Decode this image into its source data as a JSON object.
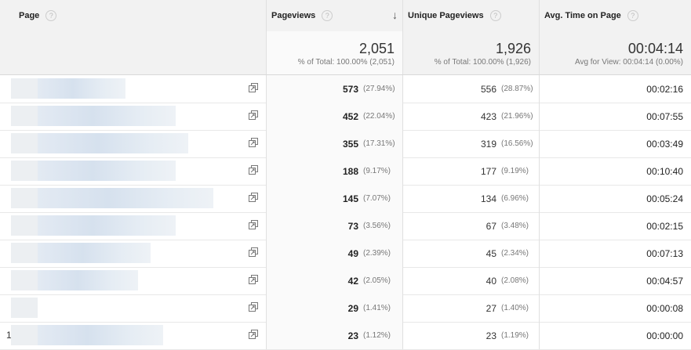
{
  "header": {
    "page_label": "Page",
    "pageviews_label": "Pageviews",
    "unique_label": "Unique Pageviews",
    "avg_time_label": "Avg. Time on Page",
    "help_glyph": "?",
    "sort_glyph": "↓"
  },
  "totals": {
    "pageviews": "2,051",
    "pageviews_sub": "% of Total: 100.00% (2,051)",
    "unique": "1,926",
    "unique_sub": "% of Total: 100.00% (1,926)",
    "avg_time": "00:04:14",
    "avg_time_sub": "Avg for View: 00:04:14 (0.00%)"
  },
  "rows": [
    {
      "index": "",
      "pageviews": "573",
      "pv_pct": "(27.94%)",
      "unique": "556",
      "u_pct": "(28.87%)",
      "avg": "00:02:16"
    },
    {
      "index": "",
      "pageviews": "452",
      "pv_pct": "(22.04%)",
      "unique": "423",
      "u_pct": "(21.96%)",
      "avg": "00:07:55"
    },
    {
      "index": "",
      "pageviews": "355",
      "pv_pct": "(17.31%)",
      "unique": "319",
      "u_pct": "(16.56%)",
      "avg": "00:03:49"
    },
    {
      "index": "",
      "pageviews": "188",
      "pv_pct": "(9.17%)",
      "unique": "177",
      "u_pct": "(9.19%)",
      "avg": "00:10:40"
    },
    {
      "index": "",
      "pageviews": "145",
      "pv_pct": "(7.07%)",
      "unique": "134",
      "u_pct": "(6.96%)",
      "avg": "00:05:24"
    },
    {
      "index": "",
      "pageviews": "73",
      "pv_pct": "(3.56%)",
      "unique": "67",
      "u_pct": "(3.48%)",
      "avg": "00:02:15"
    },
    {
      "index": "",
      "pageviews": "49",
      "pv_pct": "(2.39%)",
      "unique": "45",
      "u_pct": "(2.34%)",
      "avg": "00:07:13"
    },
    {
      "index": "",
      "pageviews": "42",
      "pv_pct": "(2.05%)",
      "unique": "40",
      "u_pct": "(2.08%)",
      "avg": "00:04:57"
    },
    {
      "index": "",
      "pageviews": "29",
      "pv_pct": "(1.41%)",
      "unique": "27",
      "u_pct": "(1.40%)",
      "avg": "00:00:08"
    },
    {
      "index": "1",
      "pageviews": "23",
      "pv_pct": "(1.12%)",
      "unique": "23",
      "u_pct": "(1.19%)",
      "avg": "00:00:00"
    }
  ]
}
